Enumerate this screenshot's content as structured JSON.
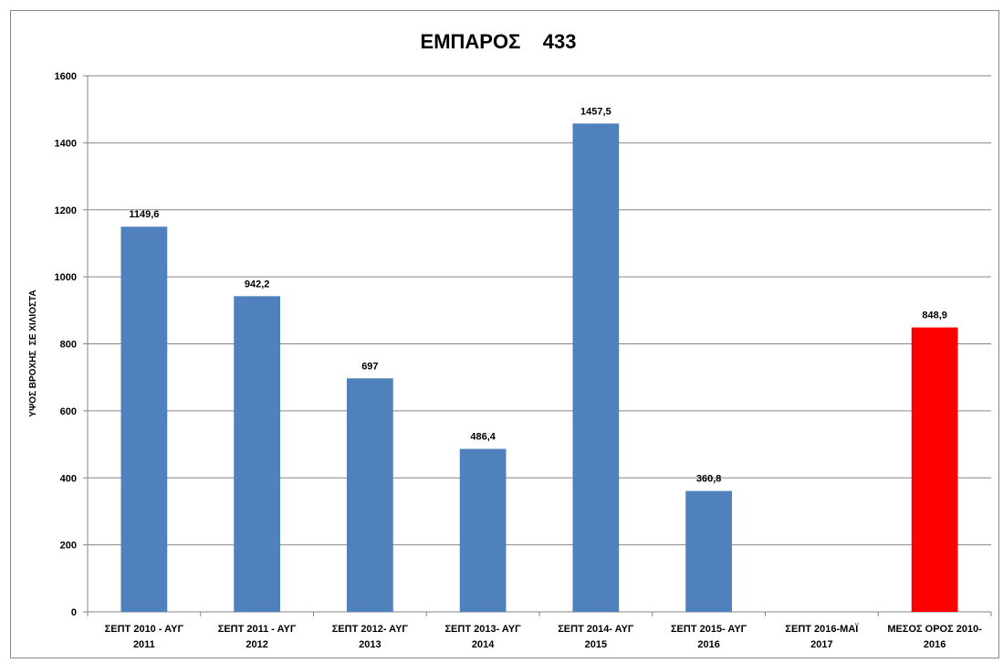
{
  "chart_data": {
    "type": "bar",
    "title": "ΕΜΠΑΡΟΣ    433",
    "xlabel": "",
    "ylabel": "ΥΨΟΣ ΒΡΟΧΗΣ  ΣΕ ΧΙΛΙΟΣΤΑ",
    "ylim": [
      0,
      1600
    ],
    "yticks": [
      "0",
      "200",
      "400",
      "600",
      "800",
      "1000",
      "1200",
      "1400",
      "1600"
    ],
    "grid": true,
    "categories": [
      [
        "ΣΕΠΤ 2010 - ΑΥΓ",
        "2011"
      ],
      [
        "ΣΕΠΤ 2011 - ΑΥΓ",
        "2012"
      ],
      [
        "ΣΕΠΤ 2012- ΑΥΓ",
        "2013"
      ],
      [
        "ΣΕΠΤ 2013- ΑΥΓ",
        "2014"
      ],
      [
        "ΣΕΠΤ 2014- ΑΥΓ",
        "2015"
      ],
      [
        "ΣΕΠΤ 2015- ΑΥΓ",
        "2016"
      ],
      [
        "ΣΕΠΤ 2016-ΜΑΪ",
        "2017"
      ],
      [
        "ΜΕΣΟΣ ΟΡΟΣ 2010-",
        "2016"
      ]
    ],
    "values": [
      1149.6,
      942.2,
      697,
      486.4,
      1457.5,
      360.8,
      null,
      848.9
    ],
    "data_labels": [
      "1149,6",
      "942,2",
      "697",
      "486,4",
      "1457,5",
      "360,8",
      "",
      "848,9"
    ],
    "bar_colors": [
      "#4f81bd",
      "#4f81bd",
      "#4f81bd",
      "#4f81bd",
      "#4f81bd",
      "#4f81bd",
      "#4f81bd",
      "#ff0000"
    ]
  },
  "colors": {
    "gridline": "#868686",
    "axis": "#868686",
    "series": "#4f81bd",
    "highlight": "#ff0000"
  }
}
